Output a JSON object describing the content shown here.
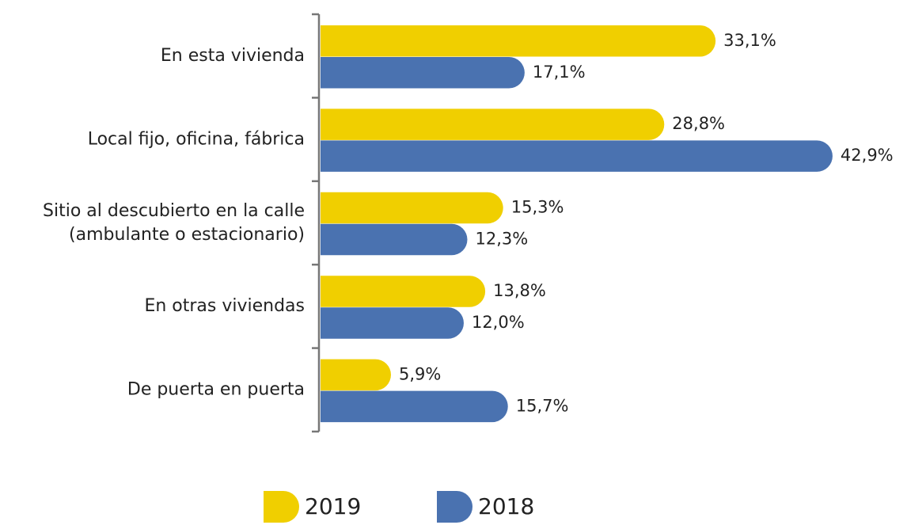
{
  "chart_data": {
    "type": "hbar",
    "categories": [
      "En esta vivienda",
      "Local fijo, oficina, fábrica",
      "Sitio al descubierto en la calle\n(ambulante o estacionario)",
      "En otras viviendas",
      "De puerta en puerta"
    ],
    "series": [
      {
        "name": "2019",
        "color": "#f0cf00",
        "values": [
          33.1,
          28.8,
          15.3,
          13.8,
          5.9
        ],
        "value_labels": [
          "33,1%",
          "28,8%",
          "15,3%",
          "13,8%",
          "5,9%"
        ]
      },
      {
        "name": "2018",
        "color": "#4a72b0",
        "values": [
          17.1,
          42.9,
          12.3,
          12.0,
          15.7
        ],
        "value_labels": [
          "17,1%",
          "42,9%",
          "12,3%",
          "12,0%",
          "15,7%"
        ]
      }
    ],
    "xlim": [
      0,
      45
    ]
  }
}
